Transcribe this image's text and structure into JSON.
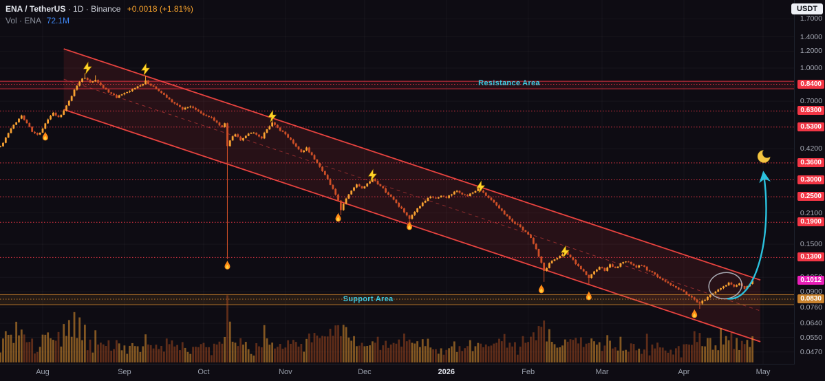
{
  "header": {
    "symbol": "ENA / TetherUS",
    "sep": "·",
    "timeframe": "1D",
    "exchange": "Binance",
    "change": "+0.0018 (+1.81%)",
    "vol_label": "Vol · ENA",
    "vol_value": "72.1M",
    "currency_button": "USDT"
  },
  "colors": {
    "background": "#0e0c13",
    "up": "#f8a131",
    "down": "#cf4f27",
    "vol_up": "rgba(248,161,49,0.5)",
    "vol_down": "rgba(176,77,32,0.5)",
    "accent_cyan": "#2bc1dd",
    "label_red": "#f23645",
    "label_pink": "#e91eb8",
    "label_orange": "#c9822d",
    "channel_red": "#e8433f",
    "band_label_cyan": "#3ec9df"
  },
  "chart_data": {
    "type": "candlestick",
    "scale": "log",
    "symbol": "ENA/USDT",
    "timeframe": "1D",
    "current": {
      "label": "0.1012",
      "price": 0.1012,
      "color": "#e91eb8"
    },
    "x_ticks": [
      {
        "label": "Aug",
        "day": 0
      },
      {
        "label": "Sep",
        "day": 31
      },
      {
        "label": "Oct",
        "day": 61
      },
      {
        "label": "Nov",
        "day": 92
      },
      {
        "label": "Dec",
        "day": 122
      },
      {
        "label": "2026",
        "day": 153,
        "emphasis": true
      },
      {
        "label": "Feb",
        "day": 184
      },
      {
        "label": "Mar",
        "day": 212
      },
      {
        "label": "Apr",
        "day": 243
      },
      {
        "label": "May",
        "day": 273
      }
    ],
    "y_ticks": [
      {
        "label": "1.7000",
        "price": 1.7
      },
      {
        "label": "1.4000",
        "price": 1.4
      },
      {
        "label": "1.2000",
        "price": 1.2
      },
      {
        "label": "1.0000",
        "price": 1.0
      },
      {
        "label": "0.7000",
        "price": 0.7
      },
      {
        "label": "0.4200",
        "price": 0.42
      },
      {
        "label": "0.2100",
        "price": 0.21
      },
      {
        "label": "0.1500",
        "price": 0.15
      },
      {
        "label": "0.1050",
        "price": 0.105
      },
      {
        "label": "0.0900",
        "price": 0.09
      },
      {
        "label": "0.0760",
        "price": 0.076
      },
      {
        "label": "0.0640",
        "price": 0.064
      },
      {
        "label": "0.0550",
        "price": 0.055
      },
      {
        "label": "0.0470",
        "price": 0.047
      }
    ],
    "level_labels": [
      {
        "label": "0.8400",
        "price": 0.84,
        "color": "#f23645"
      },
      {
        "label": "0.6300",
        "price": 0.63,
        "color": "#f23645"
      },
      {
        "label": "0.5300",
        "price": 0.53,
        "color": "#f23645"
      },
      {
        "label": "0.3600",
        "price": 0.36,
        "color": "#f23645"
      },
      {
        "label": "0.3000",
        "price": 0.3,
        "color": "#f23645"
      },
      {
        "label": "0.2500",
        "price": 0.25,
        "color": "#f23645"
      },
      {
        "label": "0.1900",
        "price": 0.19,
        "color": "#f23645"
      },
      {
        "label": "0.1300",
        "price": 0.13,
        "color": "#f23645"
      },
      {
        "label": "0.0830",
        "price": 0.083,
        "color": "#c9822d"
      }
    ],
    "levels": [
      {
        "price": 0.84,
        "color": "#f03848"
      },
      {
        "price": 0.63,
        "color": "#f03848"
      },
      {
        "price": 0.53,
        "color": "#f03848"
      },
      {
        "price": 0.36,
        "color": "#f03848"
      },
      {
        "price": 0.3,
        "color": "#f03848"
      },
      {
        "price": 0.25,
        "color": "#f03848"
      },
      {
        "price": 0.19,
        "color": "#f03848"
      },
      {
        "price": 0.13,
        "color": "#f03848"
      },
      {
        "price": 0.083,
        "color": "#c9822d"
      }
    ],
    "bands": [
      {
        "name": "resistance",
        "top": 0.868,
        "bottom": 0.8,
        "line_color": "#f23645",
        "fill": "rgba(242,54,69,0.10)"
      },
      {
        "name": "support",
        "top": 0.0872,
        "bottom": 0.0782,
        "line_color": "#c9822d",
        "fill": "rgba(201,130,45,0.12)"
      }
    ],
    "labels": {
      "resistance": "Resistance Area",
      "support": "Support Area"
    },
    "channel": {
      "upper": [
        [
          8,
          1.23
        ],
        [
          272,
          0.102
        ]
      ],
      "lower": [
        [
          8,
          0.64
        ],
        [
          272,
          0.0525
        ]
      ],
      "color": "#e8433f",
      "fill": "rgba(244,60,60,0.11)"
    },
    "price_path": [
      [
        -16,
        0.43
      ],
      [
        -14,
        0.47
      ],
      [
        -12,
        0.52
      ],
      [
        -10,
        0.56
      ],
      [
        -8,
        0.6
      ],
      [
        -6,
        0.555
      ],
      [
        -4,
        0.505
      ],
      [
        -2,
        0.485
      ],
      [
        0,
        0.52
      ],
      [
        2,
        0.575
      ],
      [
        4,
        0.62
      ],
      [
        6,
        0.585
      ],
      [
        8,
        0.63
      ],
      [
        10,
        0.7
      ],
      [
        12,
        0.79
      ],
      [
        14,
        0.87
      ],
      [
        16,
        0.905
      ],
      [
        18,
        0.862
      ],
      [
        20,
        0.882
      ],
      [
        22,
        0.832
      ],
      [
        25,
        0.772
      ],
      [
        28,
        0.732
      ],
      [
        31,
        0.758
      ],
      [
        34,
        0.792
      ],
      [
        37,
        0.832
      ],
      [
        39,
        0.868
      ],
      [
        41,
        0.832
      ],
      [
        44,
        0.782
      ],
      [
        47,
        0.732
      ],
      [
        50,
        0.682
      ],
      [
        53,
        0.645
      ],
      [
        56,
        0.665
      ],
      [
        59,
        0.625
      ],
      [
        61,
        0.605
      ],
      [
        64,
        0.585
      ],
      [
        66,
        0.555
      ],
      [
        68,
        0.53
      ],
      [
        69,
        0.55
      ],
      [
        70,
        0.43
      ],
      [
        71,
        0.462
      ],
      [
        73,
        0.492
      ],
      [
        75,
        0.462
      ],
      [
        77,
        0.482
      ],
      [
        79,
        0.502
      ],
      [
        81,
        0.487
      ],
      [
        83,
        0.472
      ],
      [
        85,
        0.52
      ],
      [
        87,
        0.555
      ],
      [
        89,
        0.522
      ],
      [
        92,
        0.49
      ],
      [
        94,
        0.462
      ],
      [
        96,
        0.432
      ],
      [
        98,
        0.402
      ],
      [
        100,
        0.422
      ],
      [
        102,
        0.392
      ],
      [
        104,
        0.362
      ],
      [
        106,
        0.332
      ],
      [
        108,
        0.302
      ],
      [
        110,
        0.272
      ],
      [
        112,
        0.238
      ],
      [
        113,
        0.218
      ],
      [
        115,
        0.246
      ],
      [
        117,
        0.266
      ],
      [
        119,
        0.286
      ],
      [
        121,
        0.272
      ],
      [
        123,
        0.286
      ],
      [
        125,
        0.302
      ],
      [
        127,
        0.286
      ],
      [
        129,
        0.272
      ],
      [
        131,
        0.256
      ],
      [
        133,
        0.242
      ],
      [
        135,
        0.226
      ],
      [
        137,
        0.212
      ],
      [
        139,
        0.196
      ],
      [
        141,
        0.212
      ],
      [
        143,
        0.226
      ],
      [
        145,
        0.24
      ],
      [
        147,
        0.25
      ],
      [
        149,
        0.246
      ],
      [
        151,
        0.252
      ],
      [
        153,
        0.248
      ],
      [
        155,
        0.258
      ],
      [
        157,
        0.266
      ],
      [
        159,
        0.258
      ],
      [
        161,
        0.252
      ],
      [
        163,
        0.262
      ],
      [
        165,
        0.272
      ],
      [
        167,
        0.262
      ],
      [
        169,
        0.248
      ],
      [
        171,
        0.236
      ],
      [
        173,
        0.222
      ],
      [
        175,
        0.208
      ],
      [
        177,
        0.198
      ],
      [
        179,
        0.188
      ],
      [
        181,
        0.18
      ],
      [
        183,
        0.172
      ],
      [
        185,
        0.16
      ],
      [
        187,
        0.143
      ],
      [
        189,
        0.122
      ],
      [
        190,
        0.112
      ],
      [
        192,
        0.122
      ],
      [
        194,
        0.128
      ],
      [
        196,
        0.132
      ],
      [
        198,
        0.138
      ],
      [
        200,
        0.13
      ],
      [
        202,
        0.122
      ],
      [
        204,
        0.115
      ],
      [
        206,
        0.108
      ],
      [
        207,
        0.104
      ],
      [
        209,
        0.112
      ],
      [
        211,
        0.117
      ],
      [
        213,
        0.113
      ],
      [
        215,
        0.12
      ],
      [
        217,
        0.116
      ],
      [
        219,
        0.121
      ],
      [
        221,
        0.125
      ],
      [
        223,
        0.121
      ],
      [
        225,
        0.117
      ],
      [
        227,
        0.12
      ],
      [
        229,
        0.114
      ],
      [
        231,
        0.11
      ],
      [
        233,
        0.106
      ],
      [
        235,
        0.102
      ],
      [
        237,
        0.0985
      ],
      [
        239,
        0.0955
      ],
      [
        241,
        0.0925
      ],
      [
        243,
        0.0895
      ],
      [
        245,
        0.0865
      ],
      [
        247,
        0.082
      ],
      [
        249,
        0.0795
      ],
      [
        250,
        0.081
      ],
      [
        252,
        0.0845
      ],
      [
        254,
        0.0885
      ],
      [
        256,
        0.0925
      ],
      [
        258,
        0.0955
      ],
      [
        260,
        0.0985
      ],
      [
        262,
        0.0952
      ],
      [
        264,
        0.0975
      ],
      [
        266,
        0.0935
      ],
      [
        268,
        0.0985
      ],
      [
        269,
        0.1012
      ]
    ],
    "wick_events": [
      [
        16,
        "hi",
        0.945
      ],
      [
        20,
        "hi",
        0.925
      ],
      [
        39,
        "hi",
        0.918
      ],
      [
        70,
        "lo",
        0.128
      ],
      [
        87,
        "hi",
        0.585
      ],
      [
        113,
        "lo",
        0.205
      ],
      [
        125,
        "hi",
        0.315
      ],
      [
        139,
        "lo",
        0.184
      ],
      [
        165,
        "hi",
        0.282
      ],
      [
        190,
        "lo",
        0.1
      ],
      [
        198,
        "hi",
        0.142
      ],
      [
        207,
        "lo",
        0.0975
      ],
      [
        249,
        "lo",
        0.0748
      ],
      [
        269,
        "hi",
        0.1035
      ]
    ],
    "volume_spikes": [
      [
        -14,
        42
      ],
      [
        -10,
        56
      ],
      [
        -8,
        46
      ],
      [
        -4,
        32
      ],
      [
        4,
        30
      ],
      [
        6,
        42
      ],
      [
        8,
        54
      ],
      [
        10,
        60
      ],
      [
        12,
        70
      ],
      [
        14,
        62
      ],
      [
        16,
        52
      ],
      [
        20,
        44
      ],
      [
        25,
        32
      ],
      [
        39,
        38
      ],
      [
        70,
        97
      ],
      [
        71,
        56
      ],
      [
        72,
        30
      ],
      [
        87,
        28
      ],
      [
        98,
        26
      ],
      [
        113,
        38
      ],
      [
        125,
        30
      ],
      [
        139,
        32
      ],
      [
        165,
        26
      ],
      [
        187,
        30
      ],
      [
        189,
        48
      ],
      [
        198,
        30
      ],
      [
        207,
        28
      ],
      [
        231,
        22
      ],
      [
        243,
        26
      ],
      [
        247,
        44
      ],
      [
        249,
        40
      ],
      [
        253,
        32
      ],
      [
        257,
        46
      ],
      [
        259,
        36
      ],
      [
        261,
        42
      ],
      [
        263,
        32
      ],
      [
        265,
        28
      ],
      [
        267,
        32
      ],
      [
        269,
        36
      ]
    ],
    "annotations": {
      "emojis": [
        {
          "type": "flame",
          "day": 1,
          "price": 0.477
        },
        {
          "type": "bolt",
          "day": 17,
          "price": 1.0
        },
        {
          "type": "bolt",
          "day": 39,
          "price": 0.985
        },
        {
          "type": "flame",
          "day": 70,
          "price": 0.119
        },
        {
          "type": "bolt",
          "day": 87,
          "price": 0.595
        },
        {
          "type": "flame",
          "day": 112,
          "price": 0.199
        },
        {
          "type": "bolt",
          "day": 125,
          "price": 0.315
        },
        {
          "type": "flame",
          "day": 139,
          "price": 0.182
        },
        {
          "type": "bolt",
          "day": 166,
          "price": 0.278
        },
        {
          "type": "flame",
          "day": 189,
          "price": 0.0921
        },
        {
          "type": "bolt",
          "day": 198,
          "price": 0.1384
        },
        {
          "type": "flame",
          "day": 207,
          "price": 0.0855
        },
        {
          "type": "flame",
          "day": 247,
          "price": 0.0705
        },
        {
          "type": "moon",
          "day": 273.3,
          "price": 0.386
        }
      ],
      "ellipse": {
        "day": 258.7,
        "price": 0.096,
        "rx": 24,
        "ry": 19
      },
      "arrow": {
        "from_day": 259.5,
        "from_price": 0.0835,
        "to_day": 273.2,
        "to_price": 0.322,
        "color": "#2bc1dd"
      }
    }
  }
}
